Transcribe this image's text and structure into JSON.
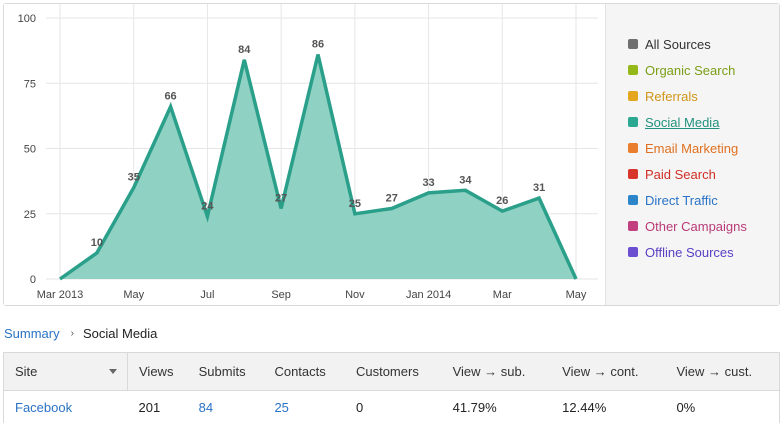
{
  "chart_data": {
    "type": "area",
    "x": [
      "Mar 2013",
      "Apr 2013",
      "May 2013",
      "Jun 2013",
      "Jul 2013",
      "Aug 2013",
      "Sep 2013",
      "Oct 2013",
      "Nov 2013",
      "Dec 2013",
      "Jan 2014",
      "Feb 2014",
      "Mar 2014",
      "Apr 2014",
      "May 2014"
    ],
    "xticks": [
      "Mar 2013",
      "May",
      "Jul",
      "Sep",
      "Nov",
      "Jan 2014",
      "Mar",
      "May"
    ],
    "xtick_months": [
      "Mar 2013",
      "May 2013",
      "Jul 2013",
      "Sep 2013",
      "Nov 2013",
      "Jan 2014",
      "Mar 2014",
      "May 2014"
    ],
    "yticks": [
      0,
      25,
      50,
      75,
      100
    ],
    "ylim": [
      0,
      100
    ],
    "series": [
      {
        "name": "Social Media",
        "values": [
          0,
          10,
          35,
          66,
          24,
          84,
          27,
          86,
          25,
          27,
          33,
          34,
          26,
          31,
          0
        ],
        "labels": [
          "",
          "10",
          "35",
          "66",
          "24",
          "84",
          "27",
          "86",
          "25",
          "27",
          "33",
          "34",
          "26",
          "31",
          ""
        ]
      }
    ],
    "grid": true,
    "legend_position": "right"
  },
  "colors": {
    "series_line": "#2a9f8a",
    "series_fill": "#8fd1c3",
    "grid": "#e6e6e6",
    "axis_text": "#444",
    "label_text": "#555"
  },
  "legend": [
    {
      "label": "All Sources",
      "color": "#6f6f6f",
      "text_color": "#333333",
      "active": false
    },
    {
      "label": "Organic Search",
      "color": "#94b817",
      "text_color": "#7a9e16",
      "active": false
    },
    {
      "label": "Referrals",
      "color": "#e3a61c",
      "text_color": "#d1951a",
      "active": false
    },
    {
      "label": "Social Media",
      "color": "#2aa891",
      "text_color": "#22917d",
      "active": true
    },
    {
      "label": "Email Marketing",
      "color": "#e87e2e",
      "text_color": "#e0701f",
      "active": false
    },
    {
      "label": "Paid Search",
      "color": "#d9342b",
      "text_color": "#cf2e26",
      "active": false
    },
    {
      "label": "Direct Traffic",
      "color": "#2b86c9",
      "text_color": "#2a73c5",
      "active": false
    },
    {
      "label": "Other Campaigns",
      "color": "#c2407f",
      "text_color": "#b83b77",
      "active": false
    },
    {
      "label": "Offline Sources",
      "color": "#6c4fd1",
      "text_color": "#5a3ec4",
      "active": false
    }
  ],
  "breadcrumb": {
    "parent": "Summary",
    "separator": "›",
    "current": "Social Media"
  },
  "table": {
    "columns": [
      "Site",
      "Views",
      "Submits",
      "Contacts",
      "Customers",
      "View → sub.",
      "View → cont.",
      "View → cust."
    ],
    "rows": [
      {
        "site": "Facebook",
        "views": "201",
        "submits": "84",
        "contacts": "25",
        "customers": "0",
        "view_sub": "41.79%",
        "view_cont": "12.44%",
        "view_cust": "0%"
      }
    ]
  }
}
